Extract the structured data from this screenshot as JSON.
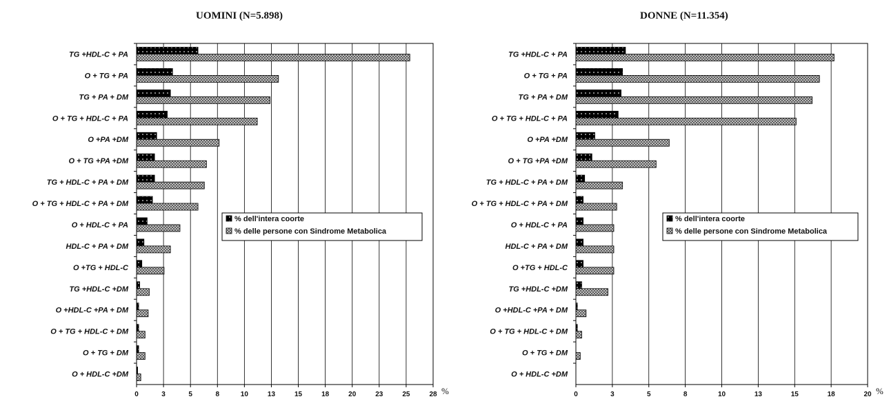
{
  "chart_data": [
    {
      "type": "bar",
      "orientation": "horizontal",
      "title": "UOMINI (N=5.898)",
      "xlabel": "%",
      "xlim": [
        0,
        28
      ],
      "xticks": [
        "0",
        "3",
        "5",
        "8",
        "10",
        "13",
        "15",
        "18",
        "20",
        "23",
        "25",
        "28"
      ],
      "grid": true,
      "legend_position": "center-right",
      "categories": [
        "TG +HDL-C + PA",
        "O + TG + PA",
        "TG + PA + DM",
        "O + TG + HDL-C + PA",
        "O +PA +DM",
        "O + TG +PA +DM",
        "TG + HDL-C + PA + DM",
        "O + TG + HDL-C + PA + DM",
        "O + HDL-C + PA",
        "HDL-C + PA + DM",
        "O +TG + HDL-C",
        "TG +HDL-C +DM",
        "O +HDL-C +PA + DM",
        "O + TG + HDL-C + DM",
        "O + TG + DM",
        "O + HDL-C +DM"
      ],
      "series": [
        {
          "name": "% dell'intera coorte",
          "values": [
            5.8,
            3.4,
            3.2,
            2.9,
            1.9,
            1.7,
            1.7,
            1.5,
            1.0,
            0.7,
            0.5,
            0.3,
            0.2,
            0.2,
            0.2,
            0.1
          ]
        },
        {
          "name": "% delle persone con Sindrome Metabolica",
          "values": [
            25.8,
            13.4,
            12.6,
            11.4,
            7.8,
            6.6,
            6.4,
            5.8,
            4.1,
            3.2,
            2.6,
            1.2,
            1.1,
            0.8,
            0.8,
            0.4
          ]
        }
      ]
    },
    {
      "type": "bar",
      "orientation": "horizontal",
      "title": "DONNE (N=11.354)",
      "xlabel": "%",
      "xlim": [
        0,
        20
      ],
      "xticks": [
        "0",
        "3",
        "5",
        "8",
        "10",
        "13",
        "15",
        "18",
        "20"
      ],
      "grid": true,
      "legend_position": "center-right",
      "categories": [
        "TG +HDL-C + PA",
        "O + TG + PA",
        "TG + PA + DM",
        "O + TG + HDL-C + PA",
        "O +PA +DM",
        "O + TG +PA +DM",
        "TG + HDL-C + PA + DM",
        "O + TG + HDL-C + PA + DM",
        "O + HDL-C + PA",
        "HDL-C + PA + DM",
        "O +TG + HDL-C",
        "TG +HDL-C +DM",
        "O +HDL-C +PA + DM",
        "O + TG + HDL-C + DM",
        "O + TG + DM",
        "O + HDL-C +DM"
      ],
      "series": [
        {
          "name": "% dell'intera coorte",
          "values": [
            3.4,
            3.2,
            3.1,
            2.9,
            1.3,
            1.1,
            0.6,
            0.5,
            0.5,
            0.5,
            0.5,
            0.4,
            0.1,
            0.1,
            0.0,
            0.0
          ]
        },
        {
          "name": "% delle persone con Sindrome Metabolica",
          "values": [
            17.7,
            16.7,
            16.2,
            15.1,
            6.4,
            5.5,
            3.2,
            2.8,
            2.6,
            2.6,
            2.6,
            2.2,
            0.7,
            0.4,
            0.3,
            0.0
          ]
        }
      ]
    }
  ]
}
